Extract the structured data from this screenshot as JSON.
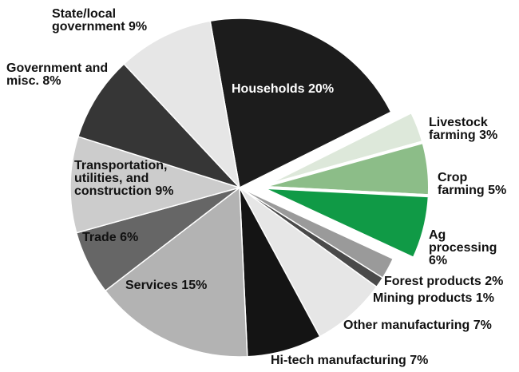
{
  "chart_data": {
    "type": "pie",
    "categories": [
      "Households",
      "Livestock farming",
      "Crop farming",
      "Ag processing",
      "Forest products",
      "Mining products",
      "Other manufacturing",
      "Hi-tech manufacturing",
      "Services",
      "Trade",
      "Transportation, utilities, and construction",
      "Government and misc.",
      "State/local government"
    ],
    "values": [
      20,
      3,
      5,
      6,
      2,
      1,
      7,
      7,
      15,
      6,
      9,
      8,
      9
    ],
    "value_labels": [
      "20%",
      "3%",
      "5%",
      "6%",
      "2%",
      "1%",
      "7%",
      "7%",
      "15%",
      "6%",
      "9%",
      "8%",
      "9%"
    ],
    "colors": [
      "#1c1c1c",
      "#dde8da",
      "#8cbd88",
      "#109a46",
      "#9a9a9a",
      "#4a4a4a",
      "#e6e6e6",
      "#141414",
      "#b3b3b3",
      "#666666",
      "#cccccc",
      "#363636",
      "#e6e6e6"
    ]
  }
}
